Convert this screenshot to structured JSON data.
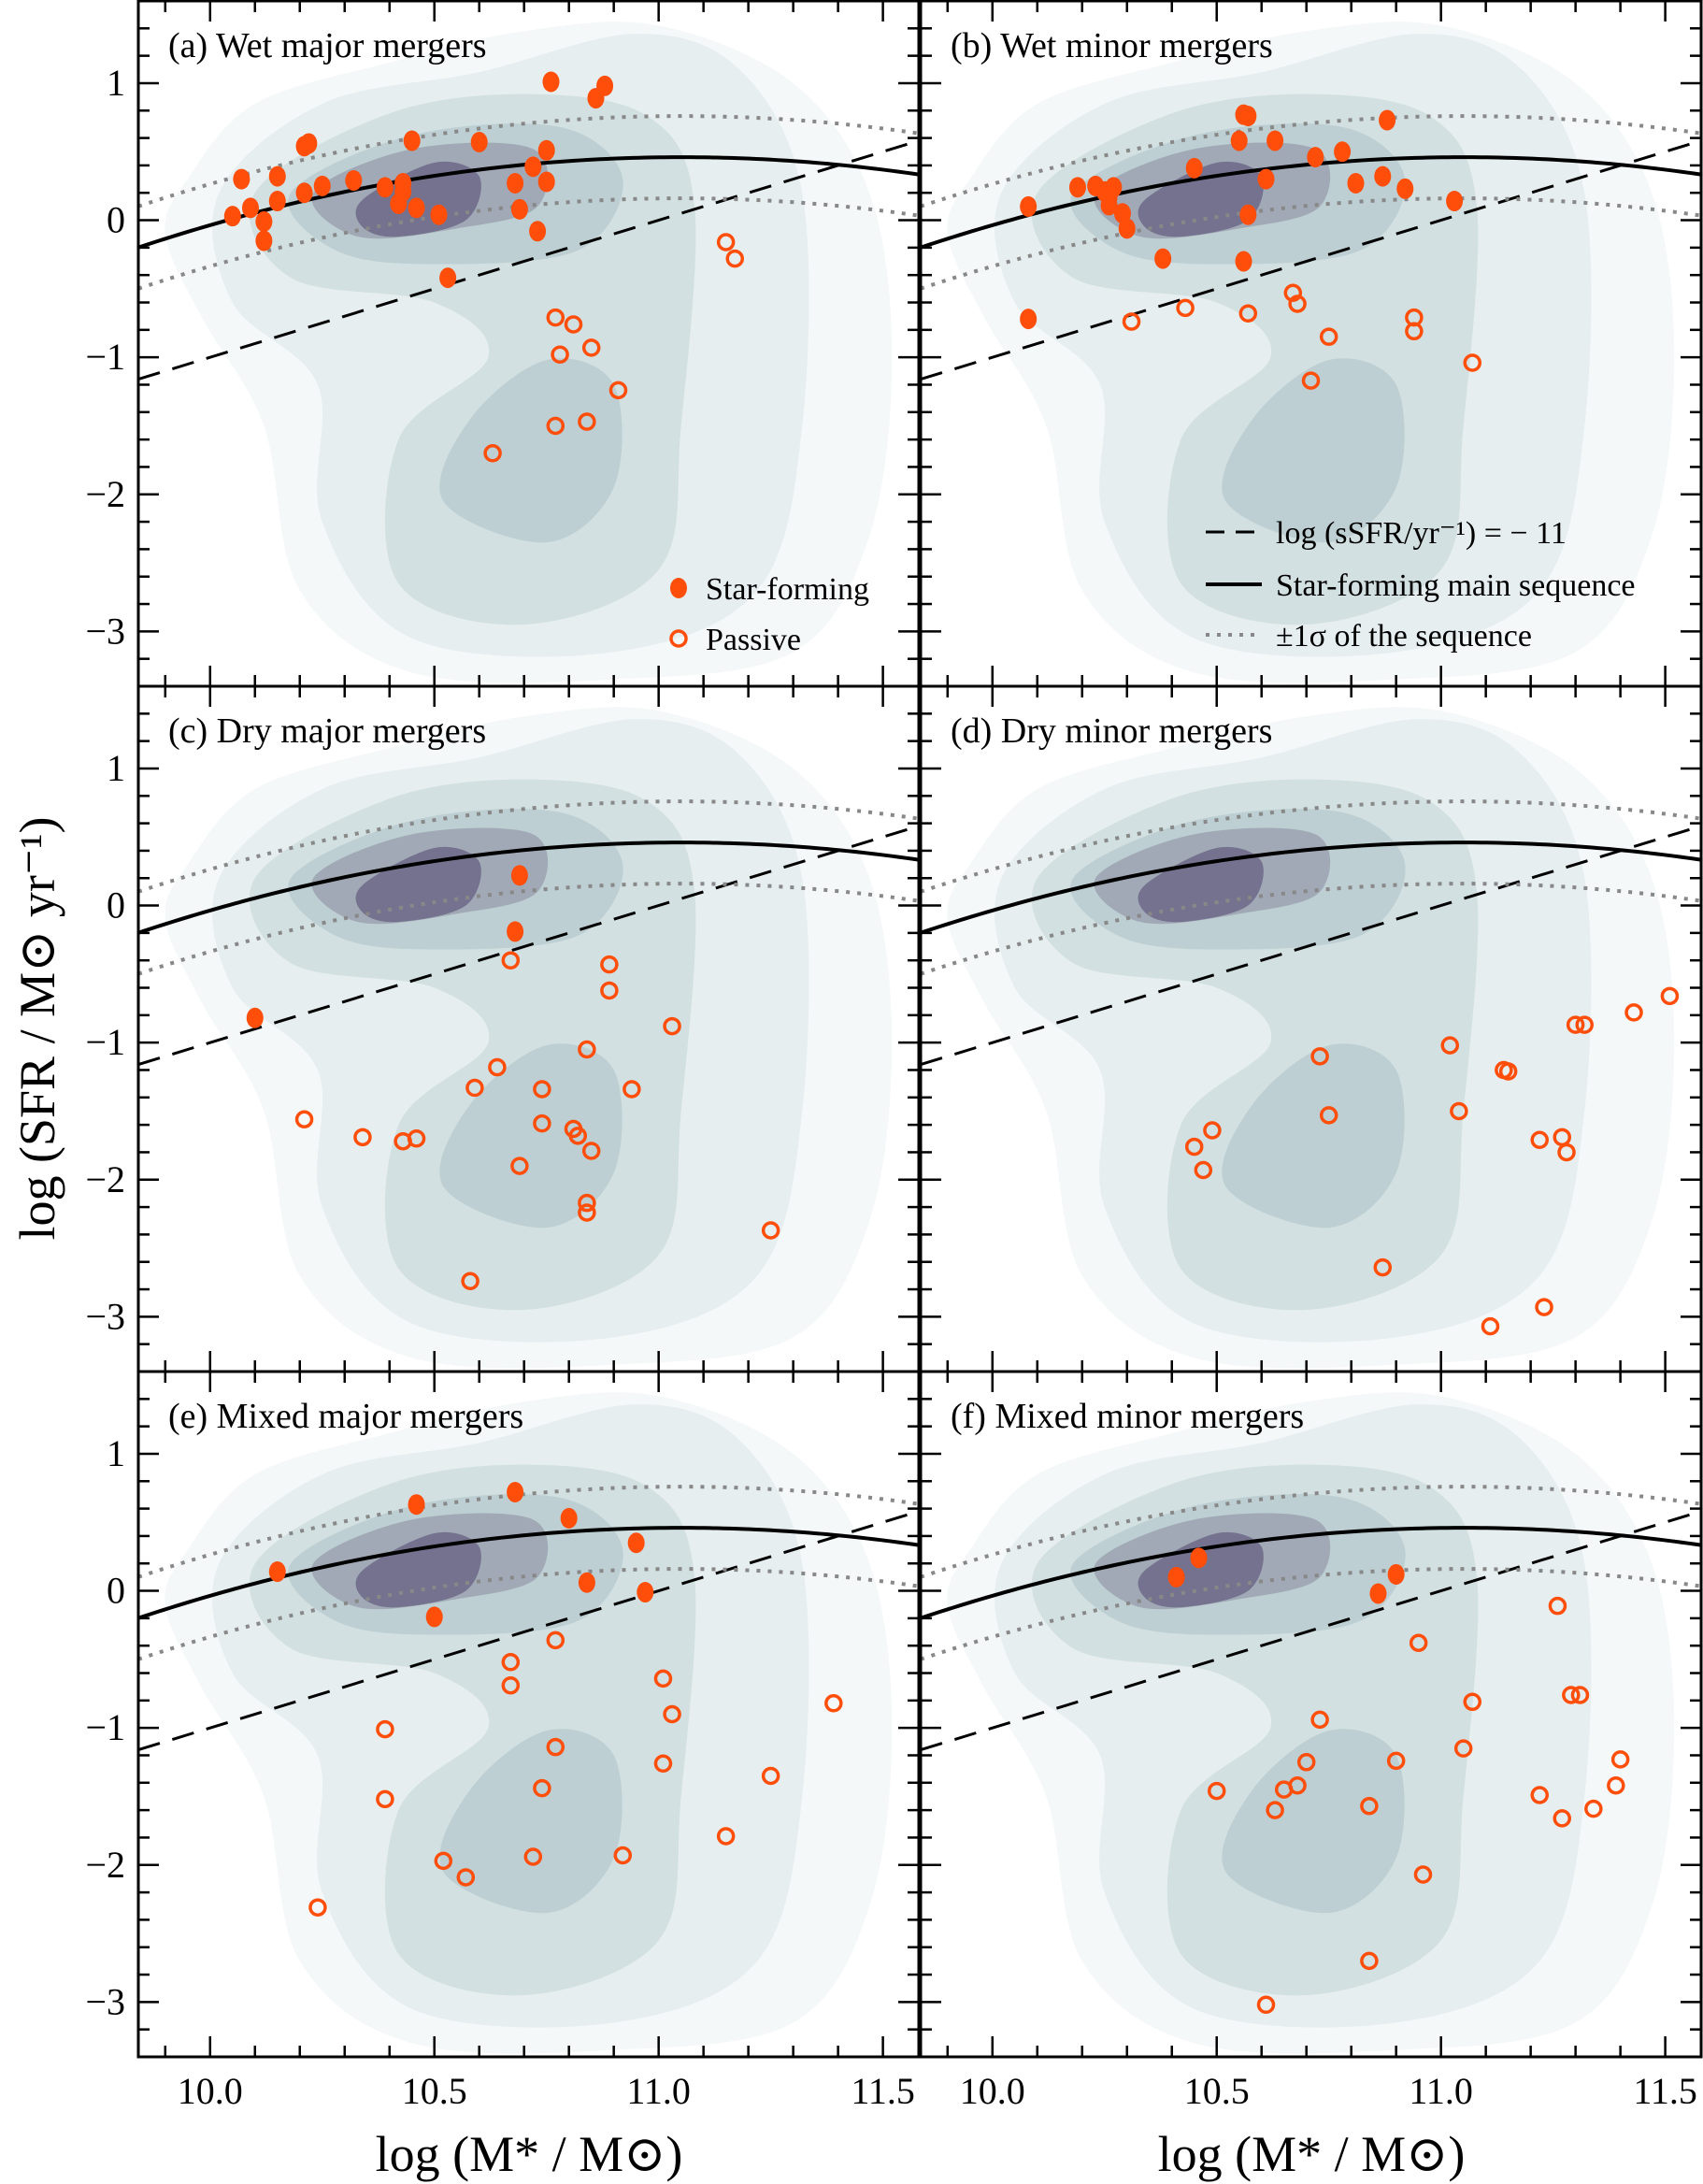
{
  "chart_data": {
    "type": "scatter",
    "xlabel": "log (M* / M⊙)",
    "ylabel": "log (SFR / M⊙ yr⁻¹)",
    "xlim": [
      9.84,
      11.58
    ],
    "ylim": [
      -3.4,
      1.6
    ],
    "xticks": [
      "10.0",
      "10.5",
      "11.0",
      "11.5"
    ],
    "yticks": [
      "1",
      "0",
      "−1",
      "−2",
      "−3"
    ],
    "colors": {
      "points": "#ff4d0a",
      "contours": [
        "#f4f8f8",
        "#e6eeef",
        "#d2e0e1",
        "#bdcfd2",
        "#a0a9b5",
        "#74728e"
      ]
    },
    "legend_points": {
      "star_forming": "Star-forming",
      "passive": "Passive",
      "placement": "lower-right of panel (a)"
    },
    "legend_lines": {
      "dashed": "log (sSFR/yr⁻¹) = − 11",
      "solid": "Star-forming main sequence",
      "dotted": "±1σ of the sequence",
      "placement": "lower-right of panel (b)"
    },
    "panels": [
      {
        "title": "(a) Wet major mergers",
        "star_forming": [
          [
            10.05,
            0.03
          ],
          [
            10.07,
            0.3
          ],
          [
            10.09,
            0.09
          ],
          [
            10.12,
            -0.15
          ],
          [
            10.12,
            -0.01
          ],
          [
            10.15,
            0.14
          ],
          [
            10.15,
            0.32
          ],
          [
            10.21,
            0.2
          ],
          [
            10.21,
            0.54
          ],
          [
            10.22,
            0.56
          ],
          [
            10.25,
            0.25
          ],
          [
            10.32,
            0.29
          ],
          [
            10.39,
            0.24
          ],
          [
            10.43,
            0.21
          ],
          [
            10.43,
            0.27
          ],
          [
            10.42,
            0.12
          ],
          [
            10.45,
            0.58
          ],
          [
            10.46,
            0.09
          ],
          [
            10.51,
            0.04
          ],
          [
            10.6,
            0.57
          ],
          [
            10.68,
            0.27
          ],
          [
            10.69,
            0.08
          ],
          [
            10.73,
            -0.08
          ],
          [
            10.72,
            0.39
          ],
          [
            10.75,
            0.51
          ],
          [
            10.75,
            0.28
          ],
          [
            10.76,
            1.01
          ],
          [
            10.86,
            0.89
          ],
          [
            10.88,
            0.98
          ],
          [
            10.53,
            -0.42
          ]
        ],
        "passive": [
          [
            11.15,
            -0.16
          ],
          [
            11.17,
            -0.28
          ],
          [
            10.77,
            -0.71
          ],
          [
            10.81,
            -0.76
          ],
          [
            10.78,
            -0.98
          ],
          [
            10.85,
            -0.93
          ],
          [
            10.91,
            -1.24
          ],
          [
            10.77,
            -1.5
          ],
          [
            10.84,
            -1.47
          ],
          [
            10.63,
            -1.7
          ]
        ]
      },
      {
        "title": "(b) Wet minor mergers",
        "star_forming": [
          [
            10.08,
            -0.72
          ],
          [
            10.08,
            0.1
          ],
          [
            10.19,
            0.24
          ],
          [
            10.23,
            0.25
          ],
          [
            10.25,
            0.21
          ],
          [
            10.26,
            0.17
          ],
          [
            10.26,
            0.11
          ],
          [
            10.29,
            0.05
          ],
          [
            10.3,
            -0.06
          ],
          [
            10.27,
            0.24
          ],
          [
            10.38,
            -0.28
          ],
          [
            10.45,
            0.38
          ],
          [
            10.55,
            0.58
          ],
          [
            10.56,
            0.77
          ],
          [
            10.57,
            0.76
          ],
          [
            10.63,
            0.58
          ],
          [
            10.61,
            0.3
          ],
          [
            10.57,
            0.04
          ],
          [
            10.56,
            -0.3
          ],
          [
            10.72,
            0.46
          ],
          [
            10.78,
            0.5
          ],
          [
            10.81,
            0.27
          ],
          [
            10.87,
            0.32
          ],
          [
            10.88,
            0.73
          ],
          [
            10.92,
            0.23
          ],
          [
            11.03,
            0.14
          ]
        ],
        "passive": [
          [
            10.31,
            -0.74
          ],
          [
            10.43,
            -0.64
          ],
          [
            10.57,
            -0.68
          ],
          [
            10.67,
            -0.53
          ],
          [
            10.68,
            -0.61
          ],
          [
            10.75,
            -0.85
          ],
          [
            10.71,
            -1.17
          ],
          [
            10.94,
            -0.71
          ],
          [
            10.94,
            -0.81
          ],
          [
            11.07,
            -1.04
          ]
        ]
      },
      {
        "title": "(c) Dry major mergers",
        "star_forming": [
          [
            10.69,
            0.22
          ],
          [
            10.68,
            -0.19
          ],
          [
            10.1,
            -0.82
          ]
        ],
        "passive": [
          [
            10.67,
            -0.4
          ],
          [
            10.89,
            -0.43
          ],
          [
            10.89,
            -0.62
          ],
          [
            11.03,
            -0.88
          ],
          [
            10.84,
            -1.05
          ],
          [
            10.21,
            -1.56
          ],
          [
            10.34,
            -1.69
          ],
          [
            10.43,
            -1.72
          ],
          [
            10.46,
            -1.7
          ],
          [
            10.59,
            -1.33
          ],
          [
            10.64,
            -1.18
          ],
          [
            10.74,
            -1.34
          ],
          [
            10.74,
            -1.59
          ],
          [
            10.81,
            -1.63
          ],
          [
            10.82,
            -1.68
          ],
          [
            10.85,
            -1.79
          ],
          [
            10.69,
            -1.9
          ],
          [
            10.94,
            -1.34
          ],
          [
            10.84,
            -2.17
          ],
          [
            10.84,
            -2.24
          ],
          [
            11.25,
            -2.37
          ],
          [
            10.58,
            -2.74
          ]
        ]
      },
      {
        "title": "(d) Dry minor mergers",
        "star_forming": [],
        "passive": [
          [
            10.73,
            -1.1
          ],
          [
            11.02,
            -1.02
          ],
          [
            11.04,
            -1.5
          ],
          [
            11.14,
            -1.2
          ],
          [
            11.15,
            -1.21
          ],
          [
            11.3,
            -0.87
          ],
          [
            11.32,
            -0.87
          ],
          [
            11.43,
            -0.78
          ],
          [
            11.51,
            -0.66
          ],
          [
            11.22,
            -1.71
          ],
          [
            11.27,
            -1.69
          ],
          [
            11.28,
            -1.8
          ],
          [
            10.45,
            -1.76
          ],
          [
            10.49,
            -1.64
          ],
          [
            10.47,
            -1.93
          ],
          [
            10.75,
            -1.53
          ],
          [
            10.87,
            -2.64
          ],
          [
            11.11,
            -3.07
          ],
          [
            11.23,
            -2.93
          ]
        ]
      },
      {
        "title": "(e) Mixed major mergers",
        "star_forming": [
          [
            10.15,
            0.14
          ],
          [
            10.46,
            0.63
          ],
          [
            10.5,
            -0.19
          ],
          [
            10.68,
            0.72
          ],
          [
            10.8,
            0.53
          ],
          [
            10.84,
            0.06
          ],
          [
            10.95,
            0.35
          ],
          [
            10.97,
            -0.01
          ]
        ],
        "passive": [
          [
            10.77,
            -0.36
          ],
          [
            10.67,
            -0.52
          ],
          [
            10.67,
            -0.69
          ],
          [
            10.39,
            -1.01
          ],
          [
            10.77,
            -1.14
          ],
          [
            10.39,
            -1.52
          ],
          [
            10.74,
            -1.44
          ],
          [
            11.01,
            -0.64
          ],
          [
            11.03,
            -0.9
          ],
          [
            11.01,
            -1.26
          ],
          [
            11.25,
            -1.35
          ],
          [
            11.39,
            -0.82
          ],
          [
            10.52,
            -1.97
          ],
          [
            10.57,
            -2.09
          ],
          [
            10.72,
            -1.94
          ],
          [
            10.92,
            -1.93
          ],
          [
            11.15,
            -1.79
          ],
          [
            10.24,
            -2.31
          ]
        ]
      },
      {
        "title": "(f) Mixed minor mergers",
        "star_forming": [
          [
            10.41,
            0.1
          ],
          [
            10.46,
            0.24
          ],
          [
            10.86,
            -0.02
          ],
          [
            10.9,
            0.12
          ]
        ],
        "passive": [
          [
            11.26,
            -0.11
          ],
          [
            10.95,
            -0.38
          ],
          [
            11.07,
            -0.81
          ],
          [
            11.29,
            -0.76
          ],
          [
            11.31,
            -0.76
          ],
          [
            10.73,
            -0.94
          ],
          [
            11.05,
            -1.15
          ],
          [
            10.9,
            -1.24
          ],
          [
            10.7,
            -1.25
          ],
          [
            10.68,
            -1.42
          ],
          [
            10.65,
            -1.45
          ],
          [
            10.5,
            -1.46
          ],
          [
            10.63,
            -1.6
          ],
          [
            10.84,
            -1.57
          ],
          [
            11.22,
            -1.49
          ],
          [
            11.27,
            -1.66
          ],
          [
            11.34,
            -1.59
          ],
          [
            11.39,
            -1.42
          ],
          [
            11.4,
            -1.23
          ],
          [
            10.96,
            -2.07
          ],
          [
            10.84,
            -2.7
          ],
          [
            10.61,
            -3.02
          ]
        ]
      }
    ]
  }
}
